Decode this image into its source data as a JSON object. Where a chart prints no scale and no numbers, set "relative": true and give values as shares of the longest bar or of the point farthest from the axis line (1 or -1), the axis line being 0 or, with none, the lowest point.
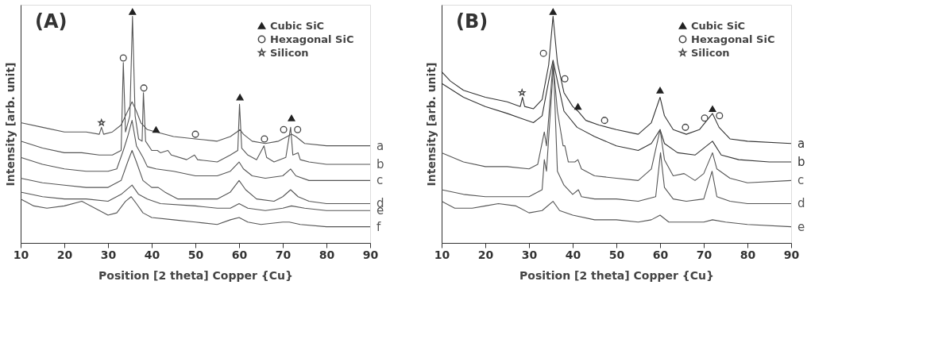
{
  "chart_data": [
    {
      "type": "line",
      "title": "(A)",
      "xlabel": "Position [2 theta] Copper {Cu}",
      "ylabel": "Intensity [arb. unit]",
      "xlim": [
        10,
        90
      ],
      "xticks": [
        10,
        20,
        30,
        40,
        50,
        60,
        70,
        80,
        90
      ],
      "relative": true,
      "grid": false,
      "legend": "top right",
      "series": [
        {
          "name": "a",
          "color": "#555555",
          "x": [
            10,
            15,
            20,
            25,
            28,
            28.5,
            29,
            31,
            33,
            34.5,
            35.5,
            36.5,
            37.5,
            39,
            41,
            45,
            50,
            55,
            58,
            59.5,
            60.2,
            61,
            63,
            66,
            69,
            71,
            72,
            73,
            75,
            80,
            85,
            90
          ],
          "values": [
            0.52,
            0.5,
            0.48,
            0.48,
            0.47,
            0.5,
            0.47,
            0.48,
            0.51,
            0.57,
            0.61,
            0.57,
            0.52,
            0.49,
            0.48,
            0.46,
            0.45,
            0.44,
            0.46,
            0.48,
            0.49,
            0.47,
            0.44,
            0.43,
            0.44,
            0.46,
            0.47,
            0.46,
            0.43,
            0.42,
            0.42,
            0.42
          ]
        },
        {
          "name": "b",
          "color": "#555555",
          "x": [
            10,
            15,
            20,
            24,
            28,
            31,
            33,
            33.5,
            34,
            35,
            35.6,
            36.2,
            37,
            37.8,
            38.1,
            38.6,
            40,
            41.3,
            42,
            43.7,
            44.5,
            48,
            49.8,
            50.5,
            55,
            58,
            59.7,
            60.1,
            60.6,
            62,
            64,
            65.7,
            66.3,
            68,
            70.7,
            71.8,
            72.3,
            73.5,
            74,
            76,
            80,
            85,
            90
          ],
          "values": [
            0.44,
            0.41,
            0.39,
            0.39,
            0.38,
            0.38,
            0.4,
            0.78,
            0.48,
            0.55,
            0.98,
            0.55,
            0.45,
            0.44,
            0.65,
            0.44,
            0.4,
            0.4,
            0.39,
            0.4,
            0.38,
            0.36,
            0.38,
            0.36,
            0.35,
            0.38,
            0.4,
            0.6,
            0.41,
            0.38,
            0.36,
            0.42,
            0.37,
            0.35,
            0.37,
            0.5,
            0.38,
            0.39,
            0.36,
            0.35,
            0.34,
            0.34,
            0.34
          ]
        },
        {
          "name": "c",
          "color": "#555555",
          "x": [
            10,
            15,
            20,
            25,
            30,
            32,
            33.5,
            34.5,
            35.5,
            36.5,
            38,
            39,
            41,
            45,
            50,
            55,
            58,
            60,
            61,
            63,
            66,
            70,
            71.8,
            73,
            76,
            80,
            90
          ],
          "values": [
            0.37,
            0.34,
            0.32,
            0.31,
            0.31,
            0.32,
            0.4,
            0.46,
            0.53,
            0.42,
            0.37,
            0.33,
            0.32,
            0.31,
            0.29,
            0.29,
            0.31,
            0.35,
            0.32,
            0.29,
            0.28,
            0.29,
            0.32,
            0.29,
            0.27,
            0.27,
            0.27
          ]
        },
        {
          "name": "d",
          "color": "#555555",
          "x": [
            10,
            15,
            20,
            25,
            30,
            33,
            34.5,
            35.5,
            36.5,
            38,
            40,
            41.5,
            43,
            46,
            50,
            55,
            58,
            60,
            61.5,
            64,
            68,
            70,
            71.8,
            73.5,
            76,
            80,
            90
          ],
          "values": [
            0.28,
            0.26,
            0.25,
            0.24,
            0.24,
            0.27,
            0.35,
            0.4,
            0.35,
            0.27,
            0.24,
            0.24,
            0.22,
            0.19,
            0.19,
            0.19,
            0.22,
            0.27,
            0.23,
            0.19,
            0.18,
            0.2,
            0.23,
            0.2,
            0.18,
            0.17,
            0.17
          ]
        },
        {
          "name": "e",
          "color": "#555555",
          "x": [
            10,
            15,
            20,
            25,
            30,
            33,
            35.5,
            37,
            39,
            42,
            50,
            55,
            58,
            60,
            62,
            66,
            70,
            72,
            75,
            80,
            90
          ],
          "values": [
            0.22,
            0.2,
            0.19,
            0.19,
            0.18,
            0.21,
            0.25,
            0.21,
            0.19,
            0.17,
            0.16,
            0.15,
            0.15,
            0.17,
            0.15,
            0.14,
            0.15,
            0.16,
            0.15,
            0.14,
            0.14
          ]
        },
        {
          "name": "f",
          "color": "#555555",
          "x": [
            10,
            13,
            16,
            20,
            24,
            27,
            30,
            32,
            34,
            35.3,
            36.5,
            38,
            40,
            45,
            50,
            55,
            58,
            60,
            62,
            65,
            70,
            71.5,
            74,
            80,
            90
          ],
          "values": [
            0.19,
            0.16,
            0.15,
            0.16,
            0.18,
            0.15,
            0.12,
            0.13,
            0.18,
            0.2,
            0.17,
            0.13,
            0.11,
            0.1,
            0.09,
            0.08,
            0.1,
            0.11,
            0.09,
            0.08,
            0.09,
            0.09,
            0.08,
            0.07,
            0.07
          ]
        },
        {
          "name": "Cubic SiC",
          "type": "scatter",
          "marker": "triangle",
          "color": "#222222",
          "x": [
            35.6,
            41,
            60.2,
            72
          ],
          "values": [
            1.0,
            0.49,
            0.63,
            0.54
          ]
        },
        {
          "name": "Hexagonal SiC",
          "type": "scatter",
          "marker": "circle",
          "color": "#444444",
          "x": [
            33.5,
            38.2,
            50,
            65.8,
            70.2,
            73.4
          ],
          "values": [
            0.8,
            0.67,
            0.47,
            0.45,
            0.49,
            0.49
          ]
        },
        {
          "name": "Silicon",
          "type": "scatter",
          "marker": "star",
          "color": "#444444",
          "x": [
            28.5
          ],
          "values": [
            0.52
          ]
        }
      ]
    },
    {
      "type": "line",
      "title": "(B)",
      "xlabel": "Position [2 theta] Copper {Cu}",
      "ylabel": "Intensity [arb. unit]",
      "xlim": [
        10,
        90
      ],
      "xticks": [
        10,
        20,
        30,
        40,
        50,
        60,
        70,
        80,
        90
      ],
      "relative": true,
      "grid": false,
      "legend": "top right",
      "series": [
        {
          "name": "a",
          "color": "#333333",
          "x": [
            10,
            12,
            15,
            20,
            25,
            28,
            28.5,
            29,
            31,
            33,
            34.5,
            35.5,
            36.5,
            38,
            40,
            41.2,
            43,
            46,
            50,
            55,
            58,
            60,
            61,
            63,
            66,
            69,
            72,
            73.5,
            76,
            80,
            90
          ],
          "values": [
            0.74,
            0.7,
            0.66,
            0.63,
            0.61,
            0.59,
            0.63,
            0.59,
            0.58,
            0.62,
            0.77,
            0.98,
            0.78,
            0.65,
            0.59,
            0.57,
            0.53,
            0.51,
            0.49,
            0.47,
            0.52,
            0.63,
            0.55,
            0.49,
            0.47,
            0.49,
            0.56,
            0.5,
            0.45,
            0.44,
            0.43
          ]
        },
        {
          "name": "b",
          "color": "#333333",
          "x": [
            10,
            15,
            20,
            25,
            28,
            31,
            33,
            34.5,
            35.5,
            36.5,
            38,
            41,
            45,
            50,
            55,
            58,
            60,
            61,
            64,
            68,
            72,
            74,
            78,
            85,
            90
          ],
          "values": [
            0.69,
            0.63,
            0.59,
            0.56,
            0.54,
            0.52,
            0.55,
            0.7,
            0.79,
            0.7,
            0.57,
            0.5,
            0.46,
            0.42,
            0.4,
            0.43,
            0.49,
            0.43,
            0.39,
            0.38,
            0.44,
            0.38,
            0.36,
            0.35,
            0.35
          ]
        },
        {
          "name": "c",
          "color": "#555555",
          "x": [
            10,
            15,
            20,
            25,
            30,
            32,
            33.5,
            34,
            35.5,
            36.5,
            37.8,
            38.2,
            39,
            40.5,
            41.2,
            42,
            45,
            50,
            55,
            58,
            60,
            61,
            63,
            65.5,
            68,
            70,
            72,
            73,
            76,
            80,
            90
          ],
          "values": [
            0.39,
            0.35,
            0.33,
            0.33,
            0.32,
            0.34,
            0.48,
            0.42,
            0.78,
            0.57,
            0.42,
            0.42,
            0.35,
            0.35,
            0.36,
            0.32,
            0.29,
            0.28,
            0.27,
            0.32,
            0.49,
            0.36,
            0.29,
            0.3,
            0.27,
            0.3,
            0.39,
            0.32,
            0.28,
            0.26,
            0.27
          ]
        },
        {
          "name": "d",
          "color": "#555555",
          "x": [
            10,
            15,
            20,
            25,
            30,
            33,
            33.5,
            34,
            35.6,
            36.5,
            38,
            40,
            41.3,
            42,
            45,
            50,
            55,
            59,
            60.1,
            61,
            63,
            66,
            70,
            71.9,
            73,
            76,
            80,
            90
          ],
          "values": [
            0.23,
            0.21,
            0.2,
            0.2,
            0.2,
            0.23,
            0.36,
            0.31,
            0.77,
            0.31,
            0.25,
            0.21,
            0.23,
            0.2,
            0.19,
            0.19,
            0.18,
            0.2,
            0.39,
            0.24,
            0.19,
            0.18,
            0.19,
            0.31,
            0.2,
            0.18,
            0.17,
            0.17
          ]
        },
        {
          "name": "e",
          "color": "#555555",
          "x": [
            10,
            13,
            17,
            20,
            23,
            27,
            28,
            30,
            33,
            35.5,
            37,
            40,
            45,
            50,
            55,
            58,
            60,
            62,
            66,
            70,
            72,
            75,
            80,
            90
          ],
          "values": [
            0.18,
            0.15,
            0.15,
            0.16,
            0.17,
            0.16,
            0.15,
            0.13,
            0.14,
            0.18,
            0.14,
            0.12,
            0.1,
            0.1,
            0.09,
            0.1,
            0.12,
            0.09,
            0.09,
            0.09,
            0.1,
            0.09,
            0.08,
            0.07
          ]
        },
        {
          "name": "Cubic SiC",
          "type": "scatter",
          "marker": "triangle",
          "color": "#222222",
          "x": [
            35.5,
            41.2,
            60,
            72
          ],
          "values": [
            1.0,
            0.59,
            0.66,
            0.58
          ]
        },
        {
          "name": "Hexagonal SiC",
          "type": "scatter",
          "marker": "circle",
          "color": "#444444",
          "x": [
            33.3,
            38.2,
            47.3,
            65.8,
            70.2,
            73.6
          ],
          "values": [
            0.82,
            0.71,
            0.53,
            0.5,
            0.54,
            0.55
          ]
        },
        {
          "name": "Silicon",
          "type": "scatter",
          "marker": "star",
          "color": "#444444",
          "x": [
            28.4
          ],
          "values": [
            0.65
          ]
        }
      ]
    }
  ]
}
